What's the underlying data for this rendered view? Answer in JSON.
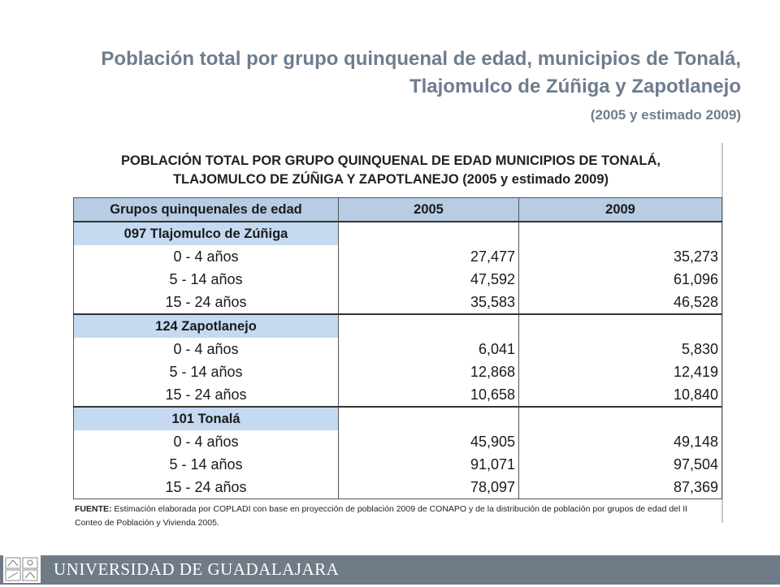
{
  "slide": {
    "title": "Población total por grupo quinquenal de edad, municipios de Tonalá, Tlajomulco de Zúñiga y Zapotlanejo",
    "subtitle": "(2005 y estimado 2009)"
  },
  "table": {
    "title_line1": "POBLACIÓN TOTAL POR GRUPO QUINQUENAL DE EDAD MUNICIPIOS DE TONALÁ,",
    "title_line2": "TLAJOMULCO DE ZÚÑIGA Y ZAPOTLANEJO (2005 y estimado 2009)",
    "headers": [
      "Grupos quinquenales de edad",
      "2005",
      "2009"
    ],
    "groups": [
      {
        "name": "097 Tlajomulco de Zúñiga",
        "rows": [
          {
            "age": "0 -   4 años",
            "y2005": "27,477",
            "y2009": "35,273"
          },
          {
            "age": "5 -   14 años",
            "y2005": "47,592",
            "y2009": "61,096"
          },
          {
            "age": "15 - 24 años",
            "y2005": "35,583",
            "y2009": "46,528"
          }
        ]
      },
      {
        "name": "124 Zapotlanejo",
        "rows": [
          {
            "age": "0 -   4 años",
            "y2005": "6,041",
            "y2009": "5,830"
          },
          {
            "age": "5 -   14 años",
            "y2005": "12,868",
            "y2009": "12,419"
          },
          {
            "age": "15 - 24 años",
            "y2005": "10,658",
            "y2009": "10,840"
          }
        ]
      },
      {
        "name": "101 Tonalá",
        "rows": [
          {
            "age": "0 -   4 años",
            "y2005": "45,905",
            "y2009": "49,148"
          },
          {
            "age": "5 -   14 años",
            "y2005": "91,071",
            "y2009": "97,504"
          },
          {
            "age": "15 - 24 años",
            "y2005": "78,097",
            "y2009": "87,369"
          }
        ]
      }
    ],
    "source_label": "FUENTE:",
    "source_text": " Estimación elaborada por COPLADI con base en proyección de población 2009 de CONAPO y de la distribución de población por grupos de edad del II Conteo de Población y Vivienda 2005."
  },
  "footer": {
    "text": "UNIVERSIDAD DE GUADALAJARA",
    "logo_icon": "university-seal-icon",
    "bar_color": "#6f7b86"
  }
}
